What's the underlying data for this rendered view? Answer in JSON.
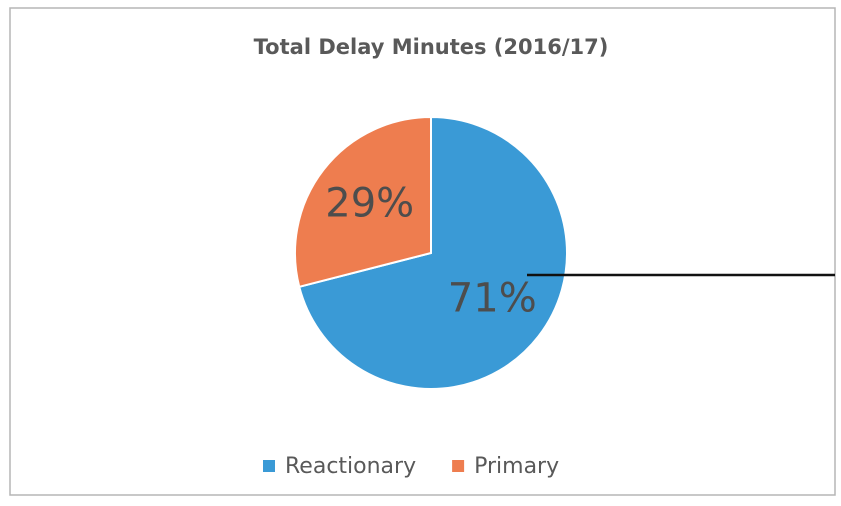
{
  "chart_data": {
    "type": "pie",
    "title": "Total Delay Minutes (2016/17)",
    "categories": [
      "Reactionary",
      "Primary"
    ],
    "values": [
      71,
      29
    ],
    "value_labels": [
      "71%",
      "29%"
    ],
    "colors": [
      "#3a9ad6",
      "#ee7d4f"
    ],
    "legend": "bottom"
  }
}
